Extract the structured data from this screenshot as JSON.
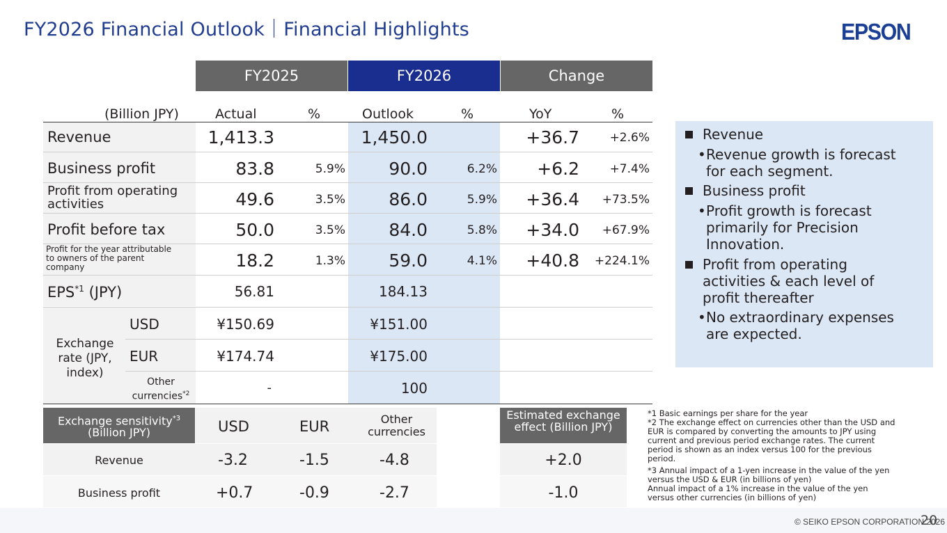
{
  "title": "FY2026 Financial Outlook｜Financial Highlights",
  "logo_text": "EPSON",
  "colors": {
    "title": "#203d8f",
    "fy2025_header": "#666666",
    "fy2026_header": "#1a2e8f",
    "change_header": "#666666",
    "outlook_highlight": "#dbe7f5",
    "notes_box": "#dbe7f5"
  },
  "group_headers": {
    "fy2025": "FY2025",
    "fy2026": "FY2026",
    "change": "Change"
  },
  "column_headers": {
    "unit": "(Billion JPY)",
    "actual": "Actual",
    "pct1": "%",
    "outlook": "Outlook",
    "pct2": "%",
    "yoy": "YoY",
    "pct3": "%"
  },
  "rows": [
    {
      "label": "Revenue",
      "actual": "1,413.3",
      "actual_pct": "",
      "outlook": "1,450.0",
      "outlook_pct": "",
      "yoy": "+36.7",
      "yoy_pct": "+2.6%"
    },
    {
      "label": "Business profit",
      "actual": "83.8",
      "actual_pct": "5.9%",
      "outlook": "90.0",
      "outlook_pct": "6.2%",
      "yoy": "+6.2",
      "yoy_pct": "+7.4%"
    },
    {
      "label": "Profit from operating activities",
      "actual": "49.6",
      "actual_pct": "3.5%",
      "outlook": "86.0",
      "outlook_pct": "5.9%",
      "yoy": "+36.4",
      "yoy_pct": "+73.5%"
    },
    {
      "label": "Profit before tax",
      "actual": "50.0",
      "actual_pct": "3.5%",
      "outlook": "84.0",
      "outlook_pct": "5.8%",
      "yoy": "+34.0",
      "yoy_pct": "+67.9%"
    },
    {
      "label": "Profit for the year attributable to owners of the parent company",
      "actual": "18.2",
      "actual_pct": "1.3%",
      "outlook": "59.0",
      "outlook_pct": "4.1%",
      "yoy": "+40.8",
      "yoy_pct": "+224.1%"
    }
  ],
  "eps": {
    "label_main": "EPS",
    "label_sup": "*1",
    "label_unit": " (JPY)",
    "actual": "56.81",
    "outlook": "184.13"
  },
  "exchange": {
    "group_label": "Exchange rate (JPY, index)",
    "usd": {
      "label": "USD",
      "actual": "¥150.69",
      "outlook": "¥151.00"
    },
    "eur": {
      "label": "EUR",
      "actual": "¥174.74",
      "outlook": "¥175.00"
    },
    "other": {
      "label": "Other currencies",
      "sup": "*2",
      "actual": "-",
      "outlook": "100"
    }
  },
  "sensitivity": {
    "header_label": "Exchange sensitivity",
    "header_sup": "*3",
    "header_unit": "(Billion JPY)",
    "col_usd": "USD",
    "col_eur": "EUR",
    "col_other": "Other currencies",
    "col_effect": "Estimated exchange effect (Billion JPY)",
    "rows": [
      {
        "label": "Revenue",
        "usd": "-3.2",
        "eur": "-1.5",
        "other": "-4.8",
        "effect": "+2.0"
      },
      {
        "label": "Business profit",
        "usd": "+0.7",
        "eur": "-0.9",
        "other": "-2.7",
        "effect": "-1.0"
      }
    ]
  },
  "notes": {
    "h1": "Revenue",
    "b1": [
      "Revenue growth is forecast",
      "for each segment."
    ],
    "h2": "Business profit",
    "b2": [
      "Profit growth is forecast",
      "primarily for Precision",
      "Innovation."
    ],
    "h3": [
      "Profit from operating",
      "activities & each level of",
      "profit thereafter"
    ],
    "b3": [
      "No extraordinary expenses",
      "are expected."
    ]
  },
  "footnotes": [
    "*1  Basic earnings per share for the year",
    "*2  The exchange effect on currencies other than the USD and",
    "      EUR is compared by converting the amounts to JPY using",
    "      current and previous period exchange rates. The current",
    "      period is shown as an index versus 100 for the previous",
    "      period.",
    "*3  Annual impact of a 1-yen increase in the value of the yen",
    "      versus the USD & EUR (in billions of yen)",
    "      Annual impact of a 1% increase in the value of the yen",
    "      versus other currencies (in billions of yen)"
  ],
  "copyright": "© SEIKO EPSON CORPORATION 2026",
  "page_number": "20"
}
